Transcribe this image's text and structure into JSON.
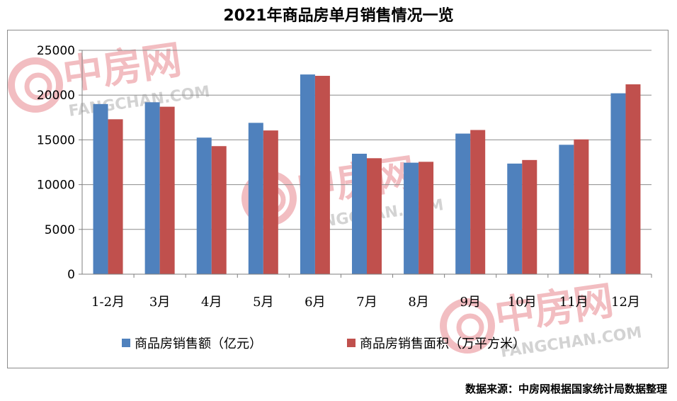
{
  "chart_data": {
    "type": "bar",
    "title": "2021年商品房单月销售情况一览",
    "categories": [
      "1-2月",
      "3月",
      "4月",
      "5月",
      "6月",
      "7月",
      "8月",
      "9月",
      "10月",
      "11月",
      "12月"
    ],
    "series": [
      {
        "name": "商品房销售额（亿元）",
        "color": "#4F81BD",
        "values": [
          19000,
          19200,
          15250,
          16900,
          22300,
          13450,
          12450,
          15700,
          12350,
          14450,
          20200
        ]
      },
      {
        "name": "商品房销售面积（万平方米）",
        "color": "#C0504D",
        "values": [
          17300,
          18700,
          14300,
          16050,
          22150,
          12950,
          12550,
          16100,
          12750,
          15050,
          21200
        ]
      }
    ],
    "yticks": [
      0,
      5000,
      10000,
      15000,
      20000,
      25000
    ],
    "ylim": [
      0,
      25000
    ],
    "grid": true,
    "legend_position": "bottom"
  },
  "watermark": {
    "brand": "中房网",
    "domain": "FANGCHAN.COM"
  },
  "source": "数据来源：中房网根据国家统计局数据整理"
}
